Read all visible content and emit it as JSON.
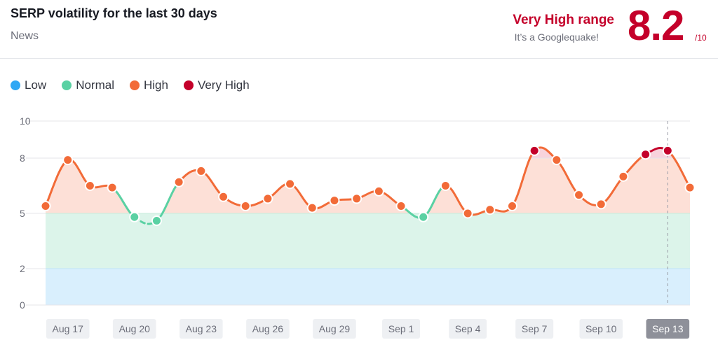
{
  "header": {
    "title": "SERP volatility for the last 30 days",
    "subtitle": "News",
    "range_label": "Very High range",
    "range_note": "It’s a Googlequake!",
    "score": "8.2",
    "score_max": "/10"
  },
  "legend": [
    {
      "label": "Low",
      "color": "#2fa8f4"
    },
    {
      "label": "Normal",
      "color": "#5ad1a3"
    },
    {
      "label": "High",
      "color": "#f26b38"
    },
    {
      "label": "Very High",
      "color": "#c4002a"
    }
  ],
  "chart_data": {
    "type": "line",
    "title": "SERP volatility for the last 30 days",
    "xlabel": "",
    "ylabel": "",
    "ylim": [
      0,
      10
    ],
    "yticks": [
      0,
      2,
      5,
      8,
      10
    ],
    "bands": [
      {
        "name": "Low",
        "from": 0,
        "to": 2,
        "color": "#d9effd"
      },
      {
        "name": "Normal",
        "from": 2,
        "to": 5,
        "color": "#dcf4ea"
      },
      {
        "name": "High",
        "from": 5,
        "to": 8,
        "color": "#fde0d7"
      },
      {
        "name": "Very High",
        "from": 8,
        "to": 10,
        "color": "#f8d3dc"
      }
    ],
    "x_tick_labels": [
      "Aug 17",
      "Aug 20",
      "Aug 23",
      "Aug 26",
      "Aug 29",
      "Sep 1",
      "Sep 4",
      "Sep 7",
      "Sep 10",
      "Sep 13"
    ],
    "x_tick_indices": [
      1,
      4,
      7,
      10,
      13,
      16,
      19,
      22,
      25,
      28
    ],
    "highlighted_tick": "Sep 13",
    "highlighted_index": 28,
    "x": [
      "Aug 16",
      "Aug 17",
      "Aug 18",
      "Aug 19",
      "Aug 20",
      "Aug 21",
      "Aug 22",
      "Aug 23",
      "Aug 24",
      "Aug 25",
      "Aug 26",
      "Aug 27",
      "Aug 28",
      "Aug 29",
      "Aug 30",
      "Aug 31",
      "Sep 1",
      "Sep 2",
      "Sep 3",
      "Sep 4",
      "Sep 5",
      "Sep 6",
      "Sep 7",
      "Sep 8",
      "Sep 9",
      "Sep 10",
      "Sep 11",
      "Sep 12",
      "Sep 13",
      "Sep 14"
    ],
    "values": [
      5.4,
      7.9,
      6.5,
      6.4,
      4.8,
      4.6,
      6.7,
      7.3,
      5.9,
      5.4,
      5.8,
      6.6,
      5.3,
      5.7,
      5.8,
      6.2,
      5.4,
      4.8,
      6.5,
      5.0,
      5.2,
      5.4,
      8.4,
      7.9,
      6.0,
      5.5,
      7.0,
      8.2,
      8.4,
      6.4
    ]
  }
}
